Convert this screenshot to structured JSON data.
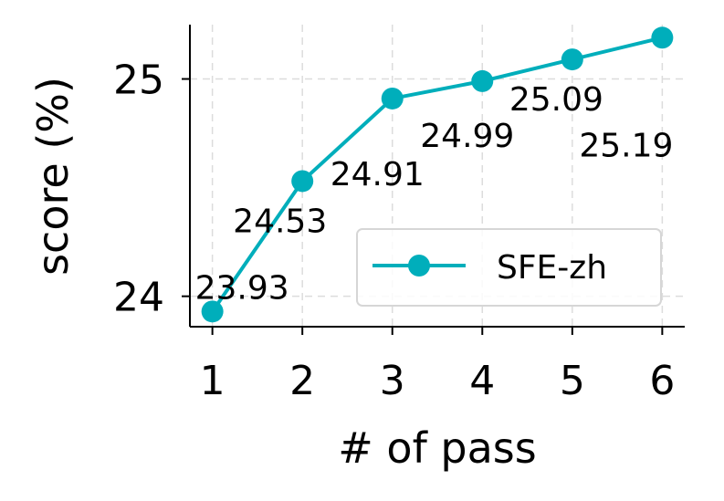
{
  "chart_data": {
    "type": "line",
    "xlabel": "# of pass",
    "ylabel": "score (%)",
    "x": [
      1,
      2,
      3,
      4,
      5,
      6
    ],
    "x_ticks": [
      "1",
      "2",
      "3",
      "4",
      "5",
      "6"
    ],
    "y_ticks": [
      24,
      25
    ],
    "y_tick_labels": [
      "24",
      "25"
    ],
    "xlim": [
      0.75,
      6.25
    ],
    "ylim": [
      23.86,
      25.25
    ],
    "grid": true,
    "legend_position": "lower-right",
    "series": [
      {
        "name": "SFE-zh",
        "color": "#00aebb",
        "marker": "circle",
        "values": [
          23.93,
          24.53,
          24.91,
          24.99,
          25.09,
          25.19
        ],
        "labels": [
          "23.93",
          "24.53",
          "24.91",
          "24.99",
          "25.09",
          "25.19"
        ]
      }
    ]
  }
}
